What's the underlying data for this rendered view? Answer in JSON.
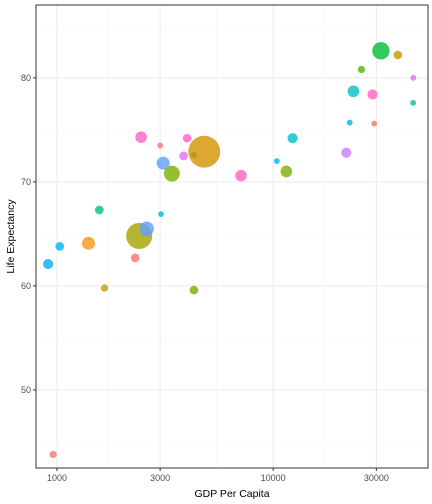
{
  "chart_data": {
    "type": "scatter",
    "xlabel": "GDP Per Capita",
    "ylabel": "Life Expectancy",
    "x_scale": "log10",
    "xlim": [
      800,
      52000
    ],
    "ylim": [
      42.5,
      87
    ],
    "x_ticks": [
      1000,
      3000,
      10000,
      30000
    ],
    "x_tick_labels": [
      "1000",
      "3000",
      "10000",
      "30000"
    ],
    "y_ticks": [
      50,
      60,
      70,
      80
    ],
    "y_tick_labels": [
      "50",
      "60",
      "70",
      "80"
    ],
    "grid": true,
    "legend": "none",
    "points": [
      {
        "x": 960,
        "y": 43.8,
        "size": 2.5,
        "color": "#F8766D"
      },
      {
        "x": 910,
        "y": 62.1,
        "size": 3.5,
        "color": "#00B0F6"
      },
      {
        "x": 1030,
        "y": 63.8,
        "size": 3,
        "color": "#00B0F6"
      },
      {
        "x": 1400,
        "y": 64.1,
        "size": 4.5,
        "color": "#F8961E"
      },
      {
        "x": 1570,
        "y": 67.3,
        "size": 3,
        "color": "#00BF7D"
      },
      {
        "x": 1660,
        "y": 59.8,
        "size": 2.5,
        "color": "#C49A00"
      },
      {
        "x": 2300,
        "y": 62.7,
        "size": 3,
        "color": "#F8766D"
      },
      {
        "x": 2400,
        "y": 64.8,
        "size": 9,
        "color": "#A3A500"
      },
      {
        "x": 2600,
        "y": 65.5,
        "size": 5,
        "color": "#619CFF"
      },
      {
        "x": 2450,
        "y": 74.3,
        "size": 4,
        "color": "#FF61C3"
      },
      {
        "x": 3000,
        "y": 73.5,
        "size": 2,
        "color": "#F8766D"
      },
      {
        "x": 3030,
        "y": 66.9,
        "size": 2,
        "color": "#00B0F6"
      },
      {
        "x": 3100,
        "y": 71.8,
        "size": 4.5,
        "color": "#619CFF"
      },
      {
        "x": 3400,
        "y": 70.8,
        "size": 5.5,
        "color": "#7CAE00"
      },
      {
        "x": 3850,
        "y": 72.5,
        "size": 3,
        "color": "#DB72FB"
      },
      {
        "x": 4000,
        "y": 74.2,
        "size": 3,
        "color": "#FF61C3"
      },
      {
        "x": 4300,
        "y": 72.6,
        "size": 2,
        "color": "#00BA38"
      },
      {
        "x": 4300,
        "y": 59.6,
        "size": 3,
        "color": "#7CAE00"
      },
      {
        "x": 4800,
        "y": 72.9,
        "size": 11,
        "color": "#D39200"
      },
      {
        "x": 7100,
        "y": 70.6,
        "size": 4,
        "color": "#FF61C3"
      },
      {
        "x": 10400,
        "y": 72.0,
        "size": 2,
        "color": "#00B0F6"
      },
      {
        "x": 11500,
        "y": 71.0,
        "size": 4,
        "color": "#7CAE00"
      },
      {
        "x": 12300,
        "y": 74.2,
        "size": 3.5,
        "color": "#00BFC4"
      },
      {
        "x": 21800,
        "y": 72.8,
        "size": 3.5,
        "color": "#C77CFF"
      },
      {
        "x": 22600,
        "y": 75.7,
        "size": 2,
        "color": "#00B0F6"
      },
      {
        "x": 23500,
        "y": 78.7,
        "size": 4,
        "color": "#00BFC4"
      },
      {
        "x": 25600,
        "y": 80.8,
        "size": 2.5,
        "color": "#53B400"
      },
      {
        "x": 28800,
        "y": 78.4,
        "size": 3.5,
        "color": "#FF61C3"
      },
      {
        "x": 29300,
        "y": 75.6,
        "size": 2,
        "color": "#F8766D"
      },
      {
        "x": 31500,
        "y": 82.6,
        "size": 6,
        "color": "#00BA38"
      },
      {
        "x": 37700,
        "y": 82.2,
        "size": 3,
        "color": "#C49A00"
      },
      {
        "x": 44400,
        "y": 77.6,
        "size": 2,
        "color": "#00C19A"
      },
      {
        "x": 44500,
        "y": 80.0,
        "size": 2,
        "color": "#E76BF3"
      }
    ]
  },
  "style": {
    "background": "#ffffff",
    "panel_border": "#333333",
    "grid_major": "#ebebeb",
    "grid_minor": "#f5f5f5",
    "tick_color": "#333333",
    "point_opacity": 0.8
  }
}
